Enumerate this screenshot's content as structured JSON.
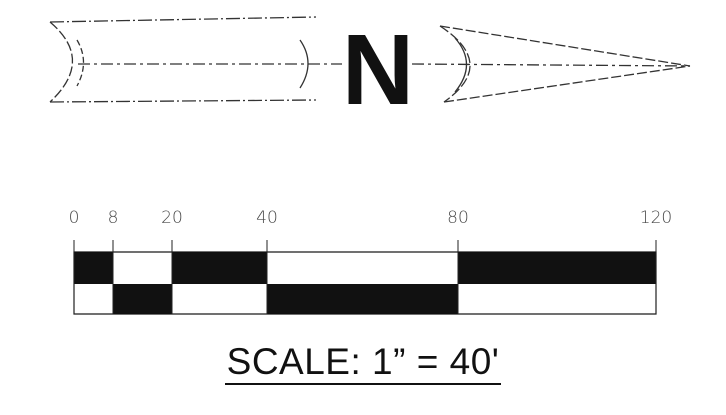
{
  "north_arrow": {
    "letter": "N",
    "color": "#111111"
  },
  "scale_bar": {
    "ticks": [
      "0",
      "8",
      "20",
      "40",
      "80",
      "120"
    ],
    "segments": [
      {
        "from": 0,
        "to": 8,
        "top": "black",
        "bottom": "white"
      },
      {
        "from": 8,
        "to": 20,
        "top": "white",
        "bottom": "black"
      },
      {
        "from": 20,
        "to": 40,
        "top": "black",
        "bottom": "white"
      },
      {
        "from": 40,
        "to": 80,
        "top": "white",
        "bottom": "black"
      },
      {
        "from": 80,
        "to": 120,
        "top": "black",
        "bottom": "white"
      }
    ],
    "max": 120
  },
  "scale_label": "SCALE: 1” = 40'"
}
